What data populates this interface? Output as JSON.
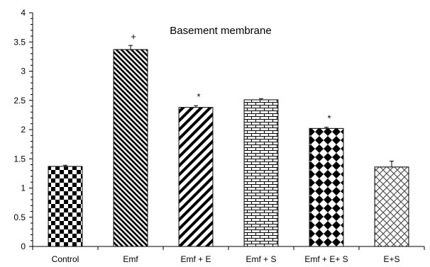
{
  "chart_data": {
    "type": "bar",
    "title": "Basement membrane",
    "xlabel": "",
    "ylabel": "",
    "categories": [
      "Control",
      "Emf",
      "Emf + E",
      "Emf + S",
      "Emf + E+ S",
      "E+S"
    ],
    "values": [
      1.37,
      3.37,
      2.38,
      2.51,
      2.02,
      1.36
    ],
    "errors": [
      0.02,
      0.07,
      0.03,
      0.02,
      0.02,
      0.1
    ],
    "annotations": [
      "",
      "+",
      "*",
      "",
      "*",
      ""
    ],
    "patterns": [
      "checkerboard",
      "diagonal-thick",
      "diagonal-wide",
      "brick",
      "diamonds",
      "trellis"
    ],
    "ylim": [
      0,
      4
    ],
    "yticks": [
      "0",
      "0.5",
      "1",
      "1.5",
      "2",
      "2.5",
      "3",
      "3.5",
      "4"
    ],
    "grid": false,
    "legend": "none"
  }
}
